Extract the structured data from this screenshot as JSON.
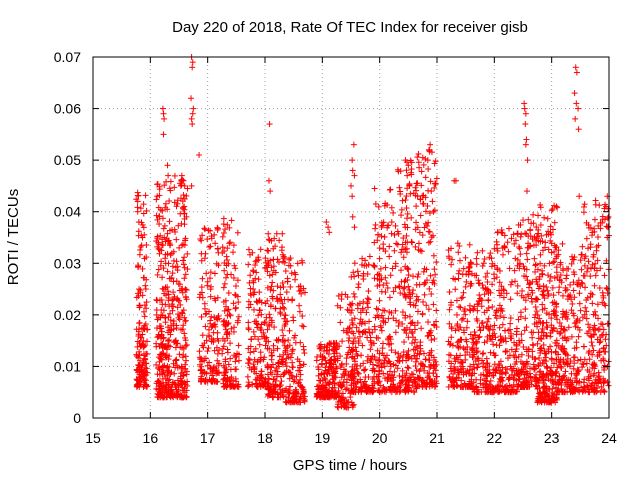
{
  "chart_data": {
    "type": "scatter",
    "title": "Day 220 of 2018, Rate Of TEC Index for receiver gisb",
    "xlabel": "GPS time / hours",
    "ylabel": "ROTI / TECUs",
    "xlim": [
      15,
      24
    ],
    "ylim": [
      0,
      0.07
    ],
    "grid": true,
    "marker": "+",
    "marker_color": "#ff0000",
    "x_ticks": [
      "15",
      "16",
      "17",
      "18",
      "19",
      "20",
      "21",
      "22",
      "23",
      "24"
    ],
    "y_ticks": [
      "0",
      "0.01",
      "0.02",
      "0.03",
      "0.04",
      "0.05",
      "0.06",
      "0.07"
    ],
    "series": [
      {
        "name": "ROTI",
        "clusters": [
          {
            "x": [
              15.75,
              15.95
            ],
            "y": [
              0.006,
              0.044
            ],
            "n": 160
          },
          {
            "x": [
              16.1,
              16.65
            ],
            "y": [
              0.004,
              0.047
            ],
            "n": 460
          },
          {
            "x": [
              16.85,
              17.2
            ],
            "y": [
              0.007,
              0.037
            ],
            "n": 150
          },
          {
            "x": [
              17.25,
              17.55
            ],
            "y": [
              0.006,
              0.039
            ],
            "n": 140
          },
          {
            "x": [
              17.7,
              18.05
            ],
            "y": [
              0.006,
              0.034
            ],
            "n": 150
          },
          {
            "x": [
              18.05,
              18.35
            ],
            "y": [
              0.004,
              0.036
            ],
            "n": 170
          },
          {
            "x": [
              18.35,
              18.7
            ],
            "y": [
              0.003,
              0.032
            ],
            "n": 150
          },
          {
            "x": [
              18.9,
              19.25
            ],
            "y": [
              0.004,
              0.015
            ],
            "n": 180
          },
          {
            "x": [
              19.25,
              19.55
            ],
            "y": [
              0.002,
              0.024
            ],
            "n": 110
          },
          {
            "x": [
              19.5,
              19.9
            ],
            "y": [
              0.005,
              0.032
            ],
            "n": 170
          },
          {
            "x": [
              19.9,
              20.3
            ],
            "y": [
              0.005,
              0.045
            ],
            "n": 190
          },
          {
            "x": [
              20.3,
              20.65
            ],
            "y": [
              0.005,
              0.05
            ],
            "n": 200
          },
          {
            "x": [
              20.65,
              21.0
            ],
            "y": [
              0.006,
              0.052
            ],
            "n": 180
          },
          {
            "x": [
              21.2,
              21.6
            ],
            "y": [
              0.006,
              0.034
            ],
            "n": 170
          },
          {
            "x": [
              21.6,
              22.0
            ],
            "y": [
              0.005,
              0.033
            ],
            "n": 190
          },
          {
            "x": [
              22.0,
              22.4
            ],
            "y": [
              0.005,
              0.037
            ],
            "n": 190
          },
          {
            "x": [
              22.4,
              22.75
            ],
            "y": [
              0.006,
              0.04
            ],
            "n": 180
          },
          {
            "x": [
              22.75,
              23.1
            ],
            "y": [
              0.003,
              0.042
            ],
            "n": 280
          },
          {
            "x": [
              23.1,
              23.55
            ],
            "y": [
              0.005,
              0.034
            ],
            "n": 210
          },
          {
            "x": [
              23.55,
              24.0
            ],
            "y": [
              0.005,
              0.043
            ],
            "n": 210
          }
        ],
        "points": [
          {
            "x": 15.78,
            "y": 0.042
          },
          {
            "x": 15.78,
            "y": 0.04
          },
          {
            "x": 15.8,
            "y": 0.038
          },
          {
            "x": 16.22,
            "y": 0.06
          },
          {
            "x": 16.23,
            "y": 0.059
          },
          {
            "x": 16.24,
            "y": 0.058
          },
          {
            "x": 16.23,
            "y": 0.055
          },
          {
            "x": 16.3,
            "y": 0.049
          },
          {
            "x": 16.31,
            "y": 0.047
          },
          {
            "x": 16.55,
            "y": 0.047
          },
          {
            "x": 16.58,
            "y": 0.046
          },
          {
            "x": 16.6,
            "y": 0.045
          },
          {
            "x": 16.72,
            "y": 0.07
          },
          {
            "x": 16.74,
            "y": 0.069
          },
          {
            "x": 16.73,
            "y": 0.068
          },
          {
            "x": 16.71,
            "y": 0.062
          },
          {
            "x": 16.75,
            "y": 0.06
          },
          {
            "x": 16.74,
            "y": 0.059
          },
          {
            "x": 16.72,
            "y": 0.058
          },
          {
            "x": 16.73,
            "y": 0.057
          },
          {
            "x": 16.72,
            "y": 0.045
          },
          {
            "x": 16.85,
            "y": 0.051
          },
          {
            "x": 18.08,
            "y": 0.057
          },
          {
            "x": 18.07,
            "y": 0.046
          },
          {
            "x": 18.09,
            "y": 0.044
          },
          {
            "x": 19.07,
            "y": 0.038
          },
          {
            "x": 19.1,
            "y": 0.037
          },
          {
            "x": 19.12,
            "y": 0.036
          },
          {
            "x": 19.55,
            "y": 0.053
          },
          {
            "x": 19.52,
            "y": 0.05
          },
          {
            "x": 19.53,
            "y": 0.048
          },
          {
            "x": 19.56,
            "y": 0.047
          },
          {
            "x": 19.5,
            "y": 0.045
          },
          {
            "x": 19.52,
            "y": 0.043
          },
          {
            "x": 19.53,
            "y": 0.039
          },
          {
            "x": 19.56,
            "y": 0.037
          },
          {
            "x": 20.45,
            "y": 0.05
          },
          {
            "x": 20.5,
            "y": 0.049
          },
          {
            "x": 20.48,
            "y": 0.047
          },
          {
            "x": 20.52,
            "y": 0.045
          },
          {
            "x": 20.88,
            "y": 0.053
          },
          {
            "x": 20.86,
            "y": 0.052
          },
          {
            "x": 20.84,
            "y": 0.05
          },
          {
            "x": 20.9,
            "y": 0.044
          },
          {
            "x": 20.92,
            "y": 0.042
          },
          {
            "x": 20.94,
            "y": 0.04
          },
          {
            "x": 21.3,
            "y": 0.046
          },
          {
            "x": 21.33,
            "y": 0.046
          },
          {
            "x": 22.52,
            "y": 0.061
          },
          {
            "x": 22.53,
            "y": 0.06
          },
          {
            "x": 22.55,
            "y": 0.059
          },
          {
            "x": 22.54,
            "y": 0.057
          },
          {
            "x": 22.56,
            "y": 0.054
          },
          {
            "x": 22.55,
            "y": 0.053
          },
          {
            "x": 22.58,
            "y": 0.05
          },
          {
            "x": 22.57,
            "y": 0.044
          },
          {
            "x": 23.42,
            "y": 0.068
          },
          {
            "x": 23.44,
            "y": 0.067
          },
          {
            "x": 23.4,
            "y": 0.063
          },
          {
            "x": 23.43,
            "y": 0.061
          },
          {
            "x": 23.46,
            "y": 0.06
          },
          {
            "x": 23.41,
            "y": 0.058
          },
          {
            "x": 23.47,
            "y": 0.056
          },
          {
            "x": 23.48,
            "y": 0.043
          },
          {
            "x": 23.97,
            "y": 0.043
          },
          {
            "x": 23.95,
            "y": 0.041
          },
          {
            "x": 23.99,
            "y": 0.039
          },
          {
            "x": 23.98,
            "y": 0.037
          },
          {
            "x": 23.97,
            "y": 0.035
          }
        ]
      }
    ]
  }
}
